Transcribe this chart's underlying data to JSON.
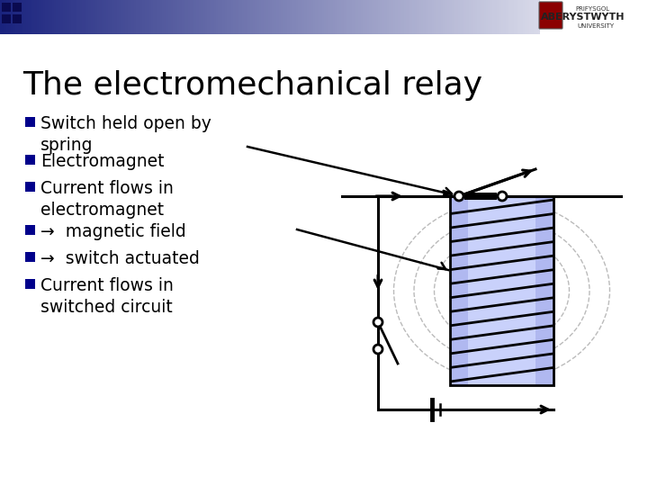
{
  "title": "The electromechanical relay",
  "title_fontsize": 26,
  "bg_color": "#ffffff",
  "header_gradient_left": "#1a237e",
  "header_gradient_right": "#ffffff",
  "bullet_color": "#00008b",
  "bullet_items": [
    "Switch held open by\nspring",
    "Electromagnet",
    "Current flows in\nelectromagnet",
    "→  magnetic field",
    "→  switch actuated",
    "Current flows in\nswitched circuit"
  ],
  "text_color": "#000000",
  "text_fontsize": 13.5,
  "coil_fill": "#9999ee",
  "ellipse_color": "#aaaaaa",
  "line_color": "#000000"
}
